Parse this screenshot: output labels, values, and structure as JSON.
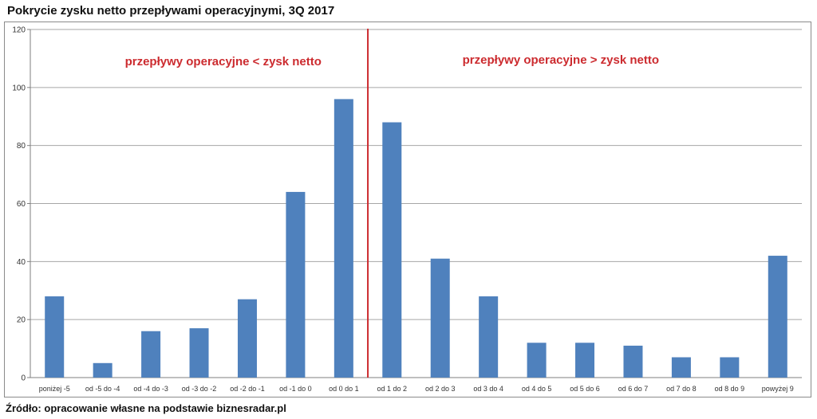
{
  "title": "Pokrycie zysku netto przepływami operacyjnymi, 3Q 2017",
  "source": "Źródło: opracowanie własne na podstawie biznesradar.pl",
  "colors": {
    "bar": "#4f81bd",
    "divider": "#cc2b2f",
    "annotation": "#cc2b2f",
    "grid": "#a6a6a6"
  },
  "chart_data": {
    "type": "bar",
    "categories": [
      "poniżej -5",
      "od -5 do -4",
      "od -4 do -3",
      "od -3 do -2",
      "od -2 do -1",
      "od -1 do 0",
      "od 0 do 1",
      "od 1 do 2",
      "od 2 do 3",
      "od 3 do 4",
      "od 4 do 5",
      "od 5 do 6",
      "od 6 do 7",
      "od 7 do 8",
      "od 8 do 9",
      "powyżej 9"
    ],
    "values": [
      28,
      5,
      16,
      17,
      27,
      64,
      96,
      88,
      41,
      28,
      12,
      12,
      11,
      7,
      7,
      42
    ],
    "ylim": [
      0,
      120
    ],
    "yticks": [
      0,
      20,
      40,
      60,
      80,
      100,
      120
    ],
    "grid": true,
    "legend": "none",
    "divider_after_category": "od 0 do 1",
    "annotations": {
      "left": "przepływy operacyjne < zysk netto",
      "right": "przepływy operacyjne > zysk netto"
    }
  }
}
